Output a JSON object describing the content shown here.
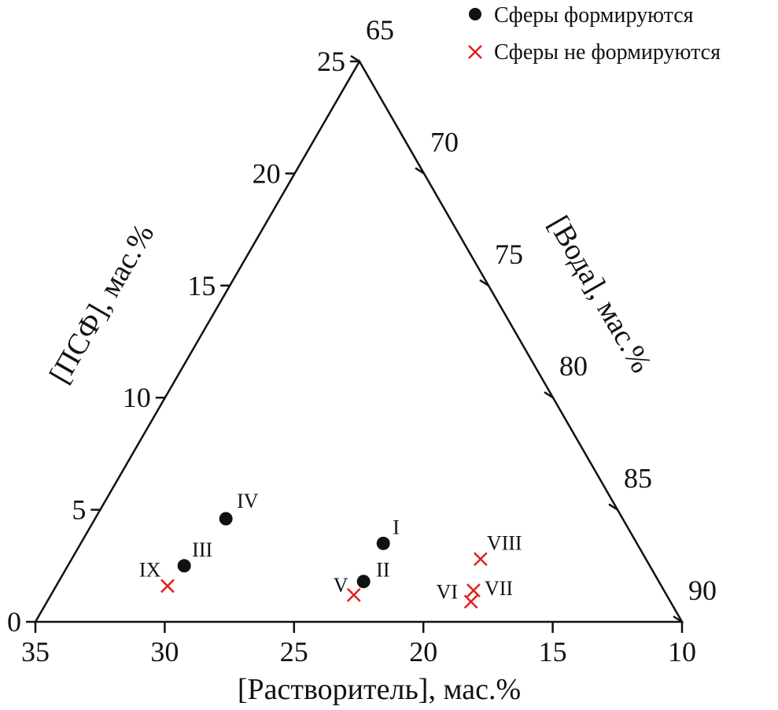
{
  "chart_data": {
    "type": "scatter",
    "subtype": "ternary",
    "legend": {
      "placement": "top-right",
      "entries": [
        {
          "label": "Сферы формируются",
          "marker": "filled-circle",
          "color": "#111111"
        },
        {
          "label": "Сферы не формируются",
          "marker": "cross",
          "color": "#e0201f"
        }
      ]
    },
    "axes": {
      "bottom": {
        "title": "[Растворитель], мас.%",
        "range": [
          10,
          35
        ],
        "ticks": [
          "35",
          "30",
          "25",
          "20",
          "15",
          "10"
        ],
        "tick_values": [
          35,
          30,
          25,
          20,
          15,
          10
        ]
      },
      "left": {
        "title": "[ПСФ], мас.%",
        "range": [
          0,
          25
        ],
        "ticks": [
          "0",
          "5",
          "10",
          "15",
          "20",
          "25"
        ],
        "tick_values": [
          0,
          5,
          10,
          15,
          20,
          25
        ]
      },
      "right": {
        "title": "[Вода], мас.%",
        "range": [
          65,
          90
        ],
        "ticks": [
          "65",
          "70",
          "75",
          "80",
          "85",
          "90"
        ],
        "tick_values": [
          65,
          70,
          75,
          80,
          85,
          90
        ]
      }
    },
    "series": [
      {
        "name": "Сферы формируются",
        "marker": "filled-circle",
        "points": [
          {
            "label": "I",
            "psf": 3.5,
            "solvent": 21.4,
            "water": 75.1
          },
          {
            "label": "II",
            "psf": 1.8,
            "solvent": 22.3,
            "water": 75.9
          },
          {
            "label": "III",
            "psf": 2.5,
            "solvent": 30.0,
            "water": 67.5
          },
          {
            "label": "IV",
            "psf": 4.6,
            "solvent": 28.8,
            "water": 66.6
          }
        ]
      },
      {
        "name": "Сферы не формируются",
        "marker": "cross",
        "points": [
          {
            "label": "V",
            "psf": 1.2,
            "solvent": 22.7,
            "water": 76.1
          },
          {
            "label": "VI",
            "psf": 0.9,
            "solvent": 18.0,
            "water": 81.1
          },
          {
            "label": "VII",
            "psf": 1.4,
            "solvent": 17.8,
            "water": 80.8
          },
          {
            "label": "VIII",
            "psf": 2.8,
            "solvent": 17.2,
            "water": 80.0
          },
          {
            "label": "IX",
            "psf": 1.6,
            "solvent": 30.4,
            "water": 68.0
          }
        ]
      }
    ]
  }
}
